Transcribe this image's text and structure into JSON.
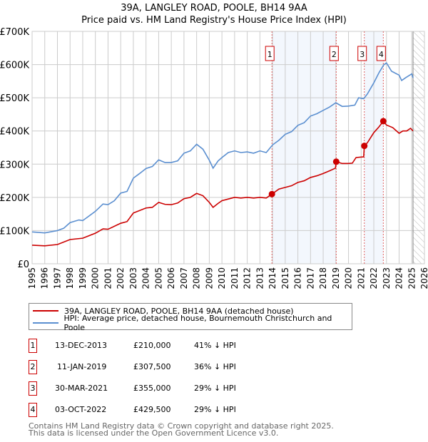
{
  "chart_data": {
    "type": "line",
    "title": "39A, LANGLEY ROAD, POOLE, BH14 9AA",
    "subtitle": "Price paid vs. HM Land Registry's House Price Index (HPI)",
    "xlim": [
      1995,
      2026
    ],
    "ylim": [
      0,
      700000
    ],
    "yticks": [
      "£0",
      "£100K",
      "£200K",
      "£300K",
      "£400K",
      "£500K",
      "£600K",
      "£700K"
    ],
    "xticks": [
      "1995",
      "1996",
      "1997",
      "1998",
      "1999",
      "2000",
      "2001",
      "2002",
      "2003",
      "2004",
      "2005",
      "2006",
      "2007",
      "2008",
      "2009",
      "2010",
      "2011",
      "2012",
      "2013",
      "2014",
      "2015",
      "2016",
      "2017",
      "2018",
      "2019",
      "2020",
      "2021",
      "2022",
      "2023",
      "2024",
      "2025",
      "2026"
    ],
    "grid": true,
    "series": [
      {
        "name": "39A, LANGLEY ROAD, POOLE, BH14 9AA (detached house)",
        "color": "#cc0000",
        "x": [
          1995,
          1996,
          1997,
          1998,
          1999,
          2000,
          2000.6,
          2001,
          2002,
          2002.5,
          2003,
          2004,
          2004.5,
          2005,
          2005.5,
          2006,
          2006.5,
          2007,
          2007.5,
          2008,
          2008.5,
          2009,
          2009.3,
          2009.7,
          2010,
          2010.5,
          2011,
          2011.5,
          2012,
          2012.5,
          2013,
          2013.5,
          2013.95,
          2014.5,
          2015,
          2015.5,
          2016,
          2016.5,
          2017,
          2017.5,
          2018,
          2018.5,
          2018.97,
          2019.03,
          2019.5,
          2020,
          2020.3,
          2020.6,
          2021.2,
          2021.25,
          2021.5,
          2022,
          2022.4,
          2022.75,
          2023,
          2023.5,
          2024,
          2024.3,
          2024.6,
          2024.9,
          2025.1
        ],
        "y": [
          56000,
          54000,
          58000,
          73000,
          77000,
          92000,
          105000,
          104000,
          122000,
          127000,
          153000,
          168000,
          170000,
          185000,
          179000,
          178000,
          183000,
          196000,
          200000,
          212000,
          205000,
          185000,
          170000,
          182000,
          190000,
          195000,
          200000,
          198000,
          200000,
          198000,
          200000,
          198000,
          210000,
          225000,
          230000,
          235000,
          245000,
          250000,
          260000,
          265000,
          272000,
          280000,
          288000,
          307500,
          302000,
          302000,
          303000,
          320000,
          322000,
          355000,
          365000,
          395000,
          412000,
          429500,
          418000,
          410000,
          393000,
          400000,
          400000,
          408000,
          400000
        ]
      },
      {
        "name": "HPI: Average price, detached house, Bournemouth Christchurch and Poole",
        "color": "#5b8fd0",
        "x": [
          1995,
          1996,
          1997,
          1997.5,
          1998,
          1998.7,
          1999,
          2000,
          2000.6,
          2001,
          2001.5,
          2002,
          2002.5,
          2003,
          2003.5,
          2004,
          2004.5,
          2005,
          2005.5,
          2006,
          2006.5,
          2007,
          2007.5,
          2008,
          2008.5,
          2009,
          2009.3,
          2009.7,
          2010,
          2010.5,
          2011,
          2011.5,
          2012,
          2012.5,
          2013,
          2013.5,
          2014,
          2014.5,
          2015,
          2015.5,
          2016,
          2016.5,
          2017,
          2017.5,
          2018,
          2018.5,
          2019,
          2019.5,
          2020,
          2020.5,
          2020.8,
          2021.2,
          2021.5,
          2022,
          2022.4,
          2022.8,
          2023,
          2023.4,
          2024,
          2024.2,
          2024.5,
          2025,
          2025.1
        ],
        "y": [
          96000,
          93000,
          100000,
          107000,
          124000,
          132000,
          130000,
          158000,
          180000,
          178000,
          190000,
          213000,
          218000,
          258000,
          272000,
          287000,
          293000,
          313000,
          305000,
          305000,
          310000,
          333000,
          340000,
          360000,
          345000,
          312000,
          288000,
          310000,
          320000,
          335000,
          340000,
          335000,
          337000,
          333000,
          340000,
          335000,
          358000,
          372000,
          390000,
          398000,
          417000,
          425000,
          445000,
          452000,
          462000,
          472000,
          485000,
          474000,
          475000,
          478000,
          500000,
          497000,
          512000,
          545000,
          575000,
          600000,
          605000,
          580000,
          568000,
          552000,
          560000,
          572000,
          560000
        ]
      }
    ],
    "sales": [
      {
        "n": "1",
        "x": 2013.95,
        "y": 210000,
        "date": "13-DEC-2013",
        "price": "£210,000",
        "hpi": "41% ↓ HPI"
      },
      {
        "n": "2",
        "x": 2019.03,
        "y": 307500,
        "date": "11-JAN-2019",
        "price": "£307,500",
        "hpi": "36% ↓ HPI"
      },
      {
        "n": "3",
        "x": 2021.25,
        "y": 355000,
        "date": "30-MAR-2021",
        "price": "£355,000",
        "hpi": "29% ↓ HPI"
      },
      {
        "n": "4",
        "x": 2022.75,
        "y": 429500,
        "date": "03-OCT-2022",
        "price": "£429,500",
        "hpi": "29% ↓ HPI"
      }
    ],
    "shaded": [
      [
        2013.95,
        2019.03
      ],
      [
        2021.25,
        2022.75
      ]
    ],
    "forecast_from": 2025.1
  },
  "footer": [
    "Contains HM Land Registry data © Crown copyright and database right 2025.",
    "This data is licensed under the Open Government Licence v3.0."
  ]
}
